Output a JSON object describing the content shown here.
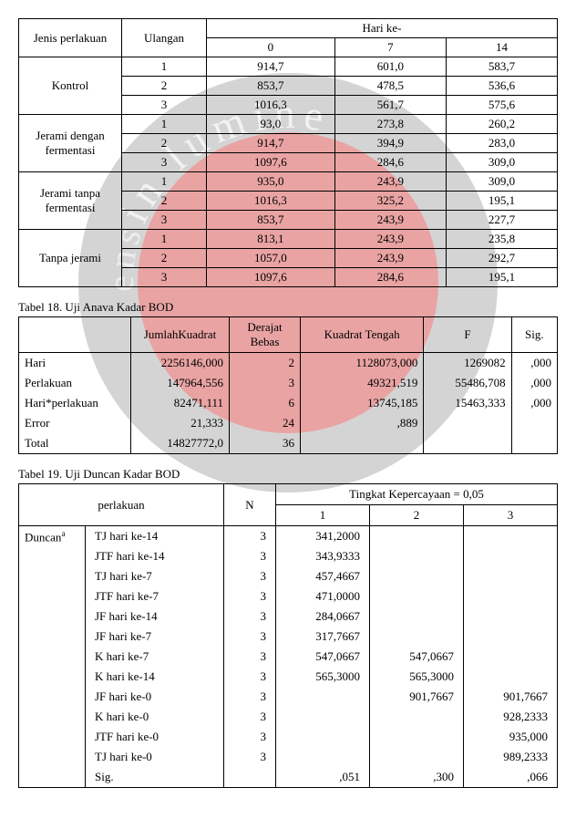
{
  "table1": {
    "headers": {
      "jenis": "Jenis perlakuan",
      "ulangan": "Ulangan",
      "hari": "Hari ke-",
      "h0": "0",
      "h7": "7",
      "h14": "14"
    },
    "groups": [
      {
        "name": "Kontrol",
        "rows": [
          [
            "1",
            "914,7",
            "601,0",
            "583,7"
          ],
          [
            "2",
            "853,7",
            "478,5",
            "536,6"
          ],
          [
            "3",
            "1016,3",
            "561,7",
            "575,6"
          ]
        ]
      },
      {
        "name": "Jerami dengan fermentasi",
        "rows": [
          [
            "1",
            "93,0",
            "273,8",
            "260,2"
          ],
          [
            "2",
            "914,7",
            "394,9",
            "283,0"
          ],
          [
            "3",
            "1097,6",
            "284,6",
            "309,0"
          ]
        ]
      },
      {
        "name": "Jerami tanpa fermentasi",
        "rows": [
          [
            "1",
            "935,0",
            "243,9",
            "309,0"
          ],
          [
            "2",
            "1016,3",
            "325,2",
            "195,1"
          ],
          [
            "3",
            "853,7",
            "243,9",
            "227,7"
          ]
        ]
      },
      {
        "name": "Tanpa jerami",
        "rows": [
          [
            "1",
            "813,1",
            "243,9",
            "235,8"
          ],
          [
            "2",
            "1057,0",
            "243,9",
            "292,7"
          ],
          [
            "3",
            "1097,6",
            "284,6",
            "195,1"
          ]
        ]
      }
    ]
  },
  "caption2": "Tabel 18. Uji Anava Kadar BOD",
  "table2": {
    "headers": [
      "",
      "JumlahKuadrat",
      "Derajat Bebas",
      "Kuadrat Tengah",
      "F",
      "Sig."
    ],
    "rows": [
      [
        "Hari",
        "2256146,000",
        "2",
        "1128073,000",
        "1269082",
        ",000"
      ],
      [
        "Perlakuan",
        "147964,556",
        "3",
        "49321,519",
        "55486,708",
        ",000"
      ],
      [
        "Hari*perlakuan",
        "82471,111",
        "6",
        "13745,185",
        "15463,333",
        ",000"
      ],
      [
        "Error",
        "21,333",
        "24",
        ",889",
        "",
        ""
      ],
      [
        "Total",
        "14827772,0",
        "36",
        "",
        "",
        ""
      ]
    ]
  },
  "caption3": "Tabel 19. Uji Duncan Kadar BOD",
  "table3": {
    "headers": {
      "perlakuan": "perlakuan",
      "n": "N",
      "tingkat": "Tingkat Kepercayaan = 0,05",
      "c1": "1",
      "c2": "2",
      "c3": "3"
    },
    "group_label": "Duncan",
    "group_sup": "a",
    "rows": [
      [
        "TJ hari ke-14",
        "3",
        "341,2000",
        "",
        ""
      ],
      [
        "JTF hari ke-14",
        "3",
        "343,9333",
        "",
        ""
      ],
      [
        "TJ hari ke-7",
        "3",
        "457,4667",
        "",
        ""
      ],
      [
        "JTF hari ke-7",
        "3",
        "471,0000",
        "",
        ""
      ],
      [
        "JF hari ke-14",
        "3",
        "284,0667",
        "",
        ""
      ],
      [
        "JF hari ke-7",
        "3",
        "317,7667",
        "",
        ""
      ],
      [
        "K hari ke-7",
        "3",
        "547,0667",
        "547,0667",
        ""
      ],
      [
        "K hari ke-14",
        "3",
        "565,3000",
        "565,3000",
        ""
      ],
      [
        "JF hari ke-0",
        "3",
        "",
        "901,7667",
        "901,7667"
      ],
      [
        "K hari ke-0",
        "3",
        "",
        "",
        "928,2333"
      ],
      [
        "JTF hari ke-0",
        "3",
        "",
        "",
        "935,000"
      ],
      [
        "TJ hari ke-0",
        "3",
        "",
        "",
        "989,2333"
      ],
      [
        "Sig.",
        "",
        ",051",
        ",300",
        ",066"
      ]
    ]
  },
  "colors": {
    "border": "#000000",
    "text": "#000000",
    "bg": "#ffffff"
  }
}
